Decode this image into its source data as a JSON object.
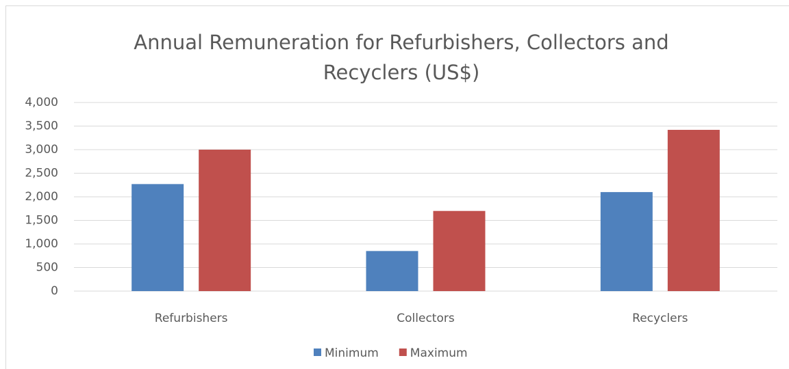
{
  "chart_data": {
    "type": "bar",
    "title": "Annual Remuneration for Refurbishers, Collectors and Recyclers (US$)",
    "categories": [
      "Refurbishers",
      "Collectors",
      "Recyclers"
    ],
    "series": [
      {
        "name": "Minimum",
        "color": "#4f81bd",
        "values": [
          2270,
          850,
          2100
        ]
      },
      {
        "name": "Maximum",
        "color": "#c0504d",
        "values": [
          3000,
          1700,
          3420
        ]
      }
    ],
    "ylim": [
      0,
      4000
    ],
    "yticks": [
      0,
      500,
      {
        "value": 1000,
        "label": "1,000"
      },
      {
        "value": 1500,
        "label": "1,500"
      },
      {
        "value": 2000,
        "label": "2,000"
      },
      {
        "value": 2500,
        "label": "2,500"
      },
      {
        "value": 3000,
        "label": "3,000"
      },
      {
        "value": 3500,
        "label": "3,500"
      },
      {
        "value": 4000,
        "label": "4,000"
      }
    ],
    "grid": true,
    "legend": "bottom"
  }
}
